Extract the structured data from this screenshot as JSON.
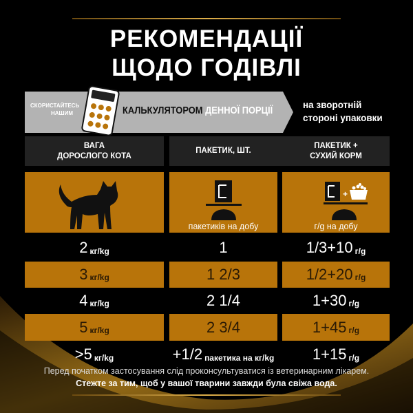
{
  "title": [
    "РЕКОМЕНДАЦІЇ",
    "ЩОДО ГОДІВЛІ"
  ],
  "banner": {
    "small": [
      "СКОРИСТАЙТЕСЬ",
      "НАШИМ"
    ],
    "big_dark": "КАЛЬКУЛЯТОРОМ",
    "big_light": "ДЕННОЇ ПОРЦІЇ",
    "right": [
      "на зворотній",
      "стороні упаковки"
    ]
  },
  "headers": {
    "weight": [
      "ВАГА",
      "ДОРОСЛОГО КОТА"
    ],
    "pouch": "ПАКЕТИК, ШТ.",
    "mixed": [
      "ПАКЕТИК +",
      "СУХИЙ КОРМ"
    ]
  },
  "icons": {
    "cat": "cat-silhouette-icon",
    "pouch_label": "пакетиків на добу",
    "mixed_label": "г/g на добу"
  },
  "rows": [
    {
      "weight": "2",
      "w_unit": "кг/kg",
      "pouch": "1",
      "p_unit": "",
      "mixed": "1/3+10",
      "m_unit": "г/g"
    },
    {
      "weight": "3",
      "w_unit": "кг/kg",
      "pouch": "1 2/3",
      "p_unit": "",
      "mixed": "1/2+20",
      "m_unit": "г/g"
    },
    {
      "weight": "4",
      "w_unit": "кг/kg",
      "pouch": "2 1/4",
      "p_unit": "",
      "mixed": "1+30",
      "m_unit": "г/g"
    },
    {
      "weight": "5",
      "w_unit": "кг/kg",
      "pouch": "2 3/4",
      "p_unit": "",
      "mixed": "1+45",
      "m_unit": "г/g"
    },
    {
      "weight": ">5",
      "w_unit": "кг/kg",
      "pouch": "+1/2",
      "p_unit": "пакетика на кг/kg",
      "mixed": "1+15",
      "m_unit": "г/g"
    }
  ],
  "footer": {
    "note": "Перед початком застосування слід проконсультуватися із ветеринарним лікарем.",
    "water": "Стежте за тим, щоб у вашої тварини завжди була свіжа вода."
  },
  "colors": {
    "orange": "#b8740a",
    "gold": "#e0b04a",
    "header_bg": "#222222",
    "banner": "#b3b3b3"
  }
}
